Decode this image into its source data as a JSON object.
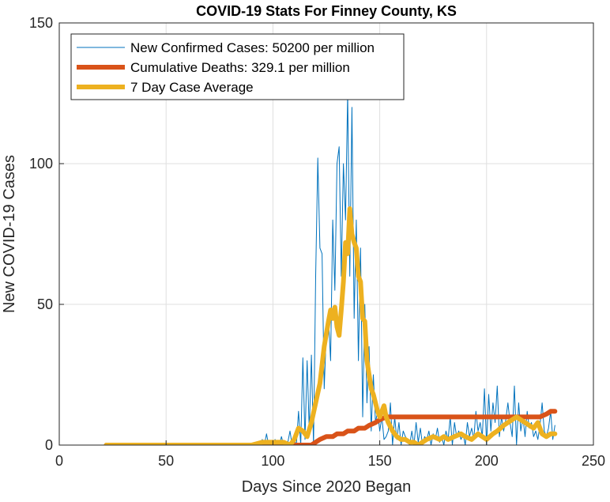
{
  "chart_data": {
    "type": "line",
    "title": "COVID-19 Stats For Finney County, KS",
    "xlabel": "Days Since 2020 Began",
    "ylabel": "New COVID-19 Cases",
    "xlim": [
      0,
      250
    ],
    "ylim": [
      0,
      150
    ],
    "xticks": [
      0,
      50,
      100,
      150,
      200,
      250
    ],
    "yticks": [
      0,
      50,
      100,
      150
    ],
    "grid": true,
    "legend_position": "top-left",
    "series": [
      {
        "name": "New Confirmed Cases: 50200 per million",
        "color": "#0072BD",
        "style": "thin",
        "x": [
          22,
          40,
          60,
          80,
          88,
          90,
          92,
          94,
          95,
          96,
          97,
          98,
          99,
          100,
          101,
          102,
          103,
          104,
          105,
          106,
          107,
          108,
          109,
          110,
          111,
          112,
          113,
          114,
          115,
          116,
          117,
          118,
          119,
          120,
          121,
          122,
          123,
          124,
          125,
          126,
          127,
          128,
          129,
          130,
          131,
          132,
          133,
          134,
          135,
          136,
          137,
          138,
          139,
          140,
          141,
          142,
          143,
          144,
          145,
          146,
          147,
          148,
          149,
          150,
          151,
          152,
          153,
          154,
          155,
          156,
          157,
          158,
          159,
          160,
          161,
          162,
          163,
          164,
          165,
          166,
          167,
          168,
          169,
          170,
          171,
          172,
          173,
          174,
          175,
          176,
          177,
          178,
          179,
          180,
          181,
          182,
          183,
          184,
          185,
          186,
          187,
          188,
          189,
          190,
          191,
          192,
          193,
          194,
          195,
          196,
          197,
          198,
          199,
          200,
          201,
          202,
          203,
          204,
          205,
          206,
          207,
          208,
          209,
          210,
          211,
          212,
          213,
          214,
          215,
          216,
          217,
          218,
          219,
          220,
          221,
          222,
          223,
          224,
          225,
          226,
          227,
          228,
          229,
          230,
          231,
          232
        ],
        "y": [
          0,
          0,
          0,
          0,
          0,
          0,
          1,
          0,
          2,
          0,
          4,
          0,
          1,
          0,
          2,
          0,
          0,
          3,
          0,
          0,
          1,
          5,
          0,
          2,
          0,
          12,
          0,
          31,
          2,
          30,
          5,
          32,
          0,
          60,
          102,
          70,
          68,
          20,
          40,
          45,
          30,
          80,
          55,
          100,
          106,
          60,
          100,
          80,
          125,
          60,
          120,
          45,
          80,
          30,
          70,
          10,
          50,
          15,
          35,
          5,
          25,
          8,
          12,
          5,
          10,
          2,
          3,
          5,
          15,
          0,
          10,
          2,
          8,
          0,
          5,
          3,
          2,
          0,
          5,
          0,
          8,
          1,
          6,
          0,
          3,
          2,
          5,
          0,
          4,
          2,
          6,
          1,
          3,
          0,
          5,
          2,
          10,
          0,
          8,
          3,
          5,
          2,
          4,
          0,
          8,
          3,
          6,
          2,
          12,
          5,
          8,
          3,
          20,
          0,
          18,
          5,
          15,
          8,
          21,
          3,
          10,
          5,
          9,
          15,
          8,
          3,
          21,
          0,
          15,
          5,
          10,
          3,
          12,
          6,
          8,
          3,
          5,
          2,
          7,
          15,
          5,
          3,
          6,
          12,
          2,
          7
        ],
        "note_peak_clipped": true
      },
      {
        "name": "Cumulative Deaths: 329.1 per million",
        "color": "#D95319",
        "style": "thick",
        "x": [
          22,
          110,
          118,
          120,
          122,
          125,
          128,
          130,
          133,
          135,
          138,
          140,
          143,
          145,
          148,
          150,
          153,
          155,
          160,
          200,
          225,
          228,
          230,
          232
        ],
        "y": [
          0,
          0,
          0,
          1,
          2,
          3,
          3,
          4,
          4,
          5,
          5,
          6,
          6,
          7,
          8,
          9,
          10,
          10,
          10,
          10,
          10,
          11,
          12,
          12
        ]
      },
      {
        "name": "7 Day Case Average",
        "color": "#EDB120",
        "style": "thick",
        "x": [
          22,
          60,
          90,
          95,
          100,
          105,
          108,
          110,
          112,
          114,
          116,
          118,
          120,
          122,
          124,
          126,
          127,
          128,
          129,
          130,
          131,
          132,
          133,
          134,
          135,
          136,
          137,
          138,
          139,
          140,
          141,
          142,
          143,
          144,
          145,
          146,
          147,
          148,
          149,
          150,
          151,
          152,
          153,
          154,
          156,
          158,
          160,
          162,
          164,
          166,
          168,
          170,
          172,
          175,
          178,
          180,
          182,
          185,
          188,
          190,
          193,
          196,
          198,
          200,
          203,
          205,
          208,
          210,
          212,
          214,
          216,
          218,
          220,
          222,
          224,
          226,
          228,
          230,
          232
        ],
        "y": [
          0,
          0,
          0,
          1,
          1,
          1,
          0,
          2,
          6,
          5,
          3,
          8,
          15,
          22,
          35,
          44,
          48,
          45,
          49,
          42,
          39,
          48,
          58,
          72,
          68,
          84,
          75,
          72,
          70,
          60,
          58,
          45,
          44,
          30,
          25,
          20,
          18,
          15,
          12,
          10,
          12,
          14,
          10,
          8,
          5,
          3,
          2,
          2,
          1,
          1,
          0,
          1,
          2,
          3,
          2,
          3,
          2,
          3,
          4,
          3,
          2,
          4,
          3,
          2,
          4,
          5,
          7,
          8,
          9,
          10,
          9,
          8,
          7,
          6,
          8,
          4,
          3,
          4,
          4
        ]
      }
    ]
  }
}
